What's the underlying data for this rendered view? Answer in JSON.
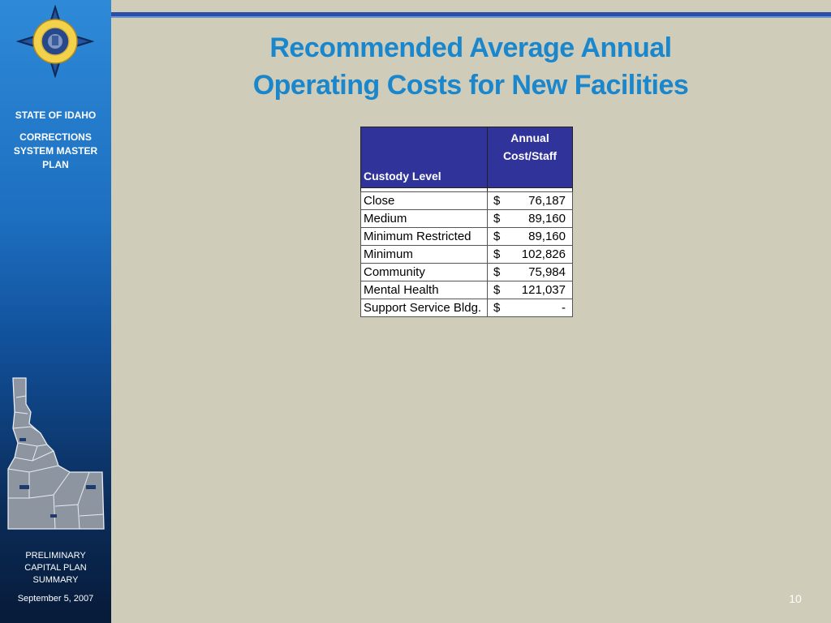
{
  "sidebar": {
    "state": "STATE OF IDAHO",
    "plan": "CORRECTIONS SYSTEM MASTER PLAN",
    "summary": "PRELIMINARY CAPITAL PLAN SUMMARY",
    "date": "September 5, 2007"
  },
  "title": {
    "line1": "Recommended Average Annual",
    "line2": "Operating Costs for New Facilities"
  },
  "table": {
    "headers": {
      "level": "Custody Level",
      "cost_line1": "Annual",
      "cost_line2": "Cost/Staff"
    },
    "rows": [
      {
        "level": "Close",
        "currency": "$",
        "cost": "76,187"
      },
      {
        "level": "Medium",
        "currency": "$",
        "cost": "89,160"
      },
      {
        "level": "Minimum Restricted",
        "currency": "$",
        "cost": "89,160"
      },
      {
        "level": "Minimum",
        "currency": "$",
        "cost": "102,826"
      },
      {
        "level": "Community",
        "currency": "$",
        "cost": "75,984"
      },
      {
        "level": "Mental Health",
        "currency": "$",
        "cost": "121,037"
      },
      {
        "level": "Support Service Bldg.",
        "currency": "$",
        "cost": "-"
      }
    ]
  },
  "page_number": "10",
  "colors": {
    "background": "#cfccba",
    "title": "#1a86cc",
    "table_header": "#30339a",
    "sidebar": "#1d6fc0"
  },
  "icons": {
    "emblem": "idaho-corrections-seal-icon",
    "map": "idaho-state-map-icon"
  }
}
